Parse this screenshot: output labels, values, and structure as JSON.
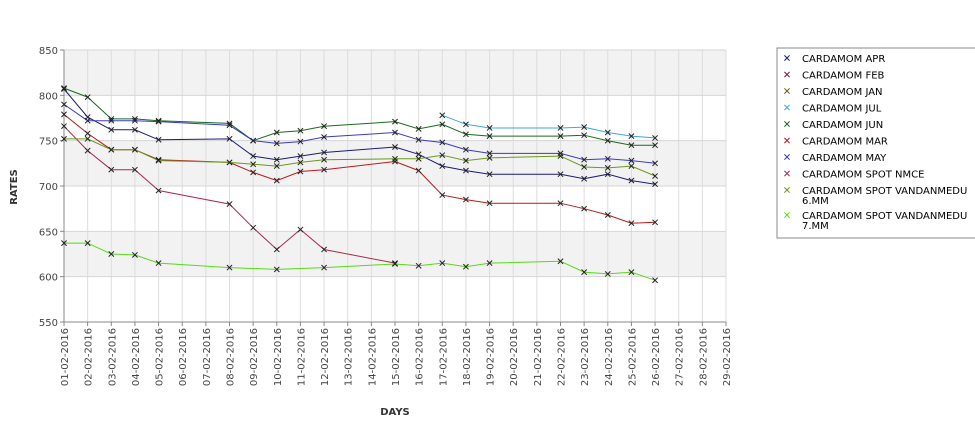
{
  "chart_data": {
    "type": "line",
    "title": "",
    "xlabel": "DAYS",
    "ylabel": "RATES",
    "ylim": [
      550,
      850
    ],
    "yticks": [
      550,
      600,
      650,
      700,
      750,
      800,
      850
    ],
    "grid": true,
    "legend_position": "right",
    "x": [
      "01-02-2016",
      "02-02-2016",
      "03-02-2016",
      "04-02-2016",
      "05-02-2016",
      "06-02-2016",
      "07-02-2016",
      "08-02-2016",
      "09-02-2016",
      "10-02-2016",
      "11-02-2016",
      "12-02-2016",
      "13-02-2016",
      "14-02-2016",
      "15-02-2016",
      "16-02-2016",
      "17-02-2016",
      "18-02-2016",
      "19-02-2016",
      "20-02-2016",
      "21-02-2016",
      "22-02-2016",
      "23-02-2016",
      "24-02-2016",
      "25-02-2016",
      "26-02-2016",
      "27-02-2016",
      "28-02-2016",
      "29-02-2016"
    ],
    "series": [
      {
        "name": "CARDAMOM APR",
        "color": "#1a1a7a",
        "values": [
          807,
          776,
          762,
          762,
          751,
          null,
          null,
          752,
          733,
          729,
          733,
          737,
          null,
          null,
          743,
          735,
          722,
          717,
          713,
          null,
          null,
          713,
          708,
          713,
          706,
          702,
          null,
          null,
          null
        ]
      },
      {
        "name": "CARDAMOM FEB",
        "color": "#7a1a3a",
        "values": [
          null,
          null,
          null,
          null,
          null,
          null,
          null,
          null,
          null,
          null,
          null,
          null,
          null,
          null,
          null,
          null,
          null,
          null,
          null,
          null,
          null,
          null,
          null,
          null,
          null,
          null,
          null,
          null,
          null
        ]
      },
      {
        "name": "CARDAMOM JAN",
        "color": "#7a5a1a",
        "values": [
          null,
          null,
          null,
          null,
          null,
          null,
          null,
          null,
          null,
          null,
          null,
          null,
          null,
          null,
          null,
          null,
          null,
          null,
          null,
          null,
          null,
          null,
          null,
          null,
          null,
          null,
          null,
          null,
          null
        ]
      },
      {
        "name": "CARDAMOM JUL",
        "color": "#3fa8d8",
        "values": [
          null,
          null,
          null,
          null,
          null,
          null,
          null,
          null,
          null,
          null,
          null,
          null,
          null,
          null,
          null,
          null,
          778,
          768,
          764,
          null,
          null,
          764,
          765,
          759,
          755,
          753,
          null,
          null,
          null
        ]
      },
      {
        "name": "CARDAMOM JUN",
        "color": "#1a6a1a",
        "values": [
          808,
          798,
          774,
          774,
          772,
          null,
          null,
          769,
          750,
          759,
          761,
          766,
          null,
          null,
          771,
          763,
          768,
          757,
          755,
          null,
          null,
          755,
          756,
          750,
          745,
          745,
          null,
          null,
          null
        ]
      },
      {
        "name": "CARDAMOM MAR",
        "color": "#b81a1a",
        "values": [
          779,
          758,
          740,
          740,
          729,
          null,
          null,
          726,
          715,
          706,
          716,
          718,
          null,
          null,
          727,
          717,
          690,
          685,
          681,
          null,
          null,
          681,
          675,
          668,
          659,
          660,
          null,
          null,
          null
        ]
      },
      {
        "name": "CARDAMOM MAY",
        "color": "#3a3ac8",
        "values": [
          790,
          772,
          772,
          772,
          771,
          null,
          null,
          767,
          750,
          747,
          749,
          754,
          null,
          null,
          759,
          751,
          748,
          740,
          736,
          null,
          null,
          736,
          729,
          730,
          728,
          725,
          null,
          null,
          null
        ]
      },
      {
        "name": "CARDAMOM SPOT NMCE",
        "color": "#a82a4a",
        "values": [
          766,
          739,
          718,
          718,
          695,
          null,
          null,
          680,
          654,
          630,
          652,
          630,
          null,
          null,
          615,
          null,
          null,
          null,
          null,
          null,
          null,
          null,
          null,
          null,
          null,
          null,
          null,
          null,
          null
        ]
      },
      {
        "name": "CARDAMOM SPOT VANDANMEDU 6.MM",
        "color": "#6a9a1a",
        "values": [
          752,
          752,
          740,
          740,
          728,
          null,
          null,
          726,
          724,
          722,
          726,
          729,
          null,
          null,
          730,
          730,
          734,
          728,
          731,
          null,
          null,
          733,
          721,
          720,
          722,
          711,
          null,
          null,
          null
        ]
      },
      {
        "name": "CARDAMOM SPOT VANDANMEDU 7.MM",
        "color": "#5ad81a",
        "values": [
          637,
          637,
          625,
          624,
          615,
          null,
          null,
          610,
          null,
          608,
          null,
          610,
          null,
          null,
          614,
          612,
          615,
          611,
          615,
          null,
          null,
          617,
          605,
          603,
          605,
          596,
          null,
          null,
          null
        ]
      }
    ]
  }
}
